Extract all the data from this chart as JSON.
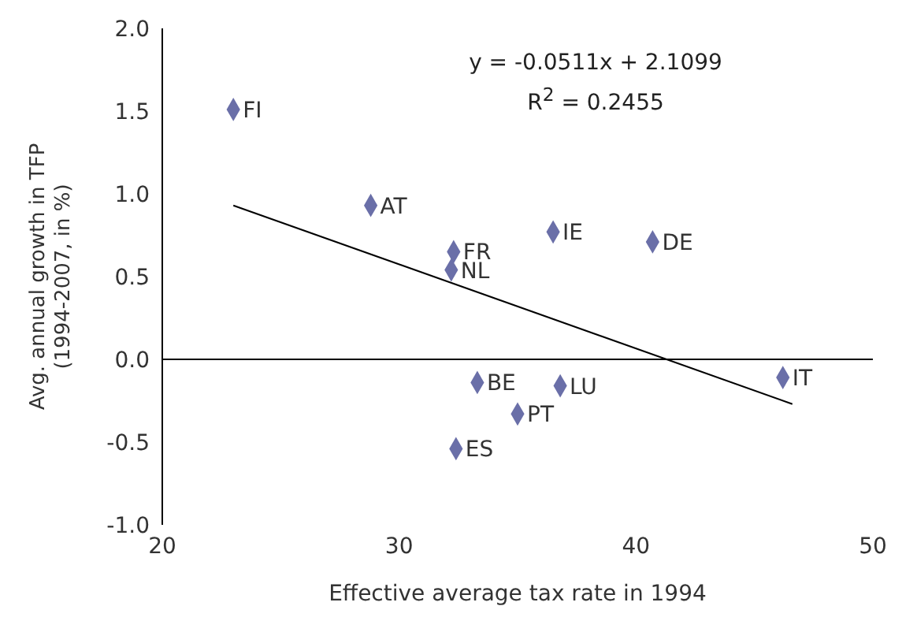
{
  "chart_data": {
    "type": "scatter",
    "xlabel": "Effective average tax rate in 1994",
    "ylabel": "Avg. annual growth in TFP\n(1994-2007, in %)",
    "xlim": [
      20,
      50
    ],
    "xticks": [
      20,
      30,
      40,
      50
    ],
    "ylim": [
      -1,
      2
    ],
    "yticks": [
      {
        "value": -1,
        "label": "-1.0"
      },
      {
        "value": -0.5,
        "label": "-0.5"
      },
      {
        "value": 0,
        "label": "0.0"
      },
      {
        "value": 0.5,
        "label": "0.5"
      },
      {
        "value": 1,
        "label": "1.0"
      },
      {
        "value": 1.5,
        "label": "1.5"
      },
      {
        "value": 2,
        "label": "2.0"
      }
    ],
    "marker": "diamond",
    "grid": false,
    "ref_lines": [
      {
        "axis": "y",
        "value": 0,
        "color": "#000000"
      }
    ],
    "series": [
      {
        "color": "#6a6fa8",
        "x": [
          23.0,
          28.8,
          32.3,
          32.2,
          36.5,
          40.7,
          33.3,
          36.8,
          35.0,
          32.4,
          46.2
        ],
        "values": [
          1.51,
          0.93,
          0.65,
          0.54,
          0.77,
          0.71,
          -0.14,
          -0.16,
          -0.33,
          -0.54,
          -0.11
        ]
      },
      {
        "type": "line",
        "marker": "none",
        "color": "#000000",
        "x": [
          23,
          46.6
        ],
        "values": [
          0.93,
          -0.27
        ]
      }
    ],
    "annotations": [
      "y = -0.0511x + 2.1099",
      "R$^{2}$ = 0.2455",
      {
        "text": "FI",
        "x": 23.0,
        "y": 1.51
      },
      {
        "text": "AT",
        "x": 28.8,
        "y": 0.93
      },
      {
        "text": "FR",
        "x": 32.3,
        "y": 0.65
      },
      {
        "text": "NL",
        "x": 32.2,
        "y": 0.54
      },
      {
        "text": "IE",
        "x": 36.5,
        "y": 0.77
      },
      {
        "text": "DE",
        "x": 40.7,
        "y": 0.71
      },
      {
        "text": "BE",
        "x": 33.3,
        "y": -0.14
      },
      {
        "text": "LU",
        "x": 36.8,
        "y": -0.16
      },
      {
        "text": "PT",
        "x": 35.0,
        "y": -0.33
      },
      {
        "text": "ES",
        "x": 32.4,
        "y": -0.54
      },
      {
        "text": "IT",
        "x": 46.2,
        "y": -0.11
      }
    ]
  }
}
